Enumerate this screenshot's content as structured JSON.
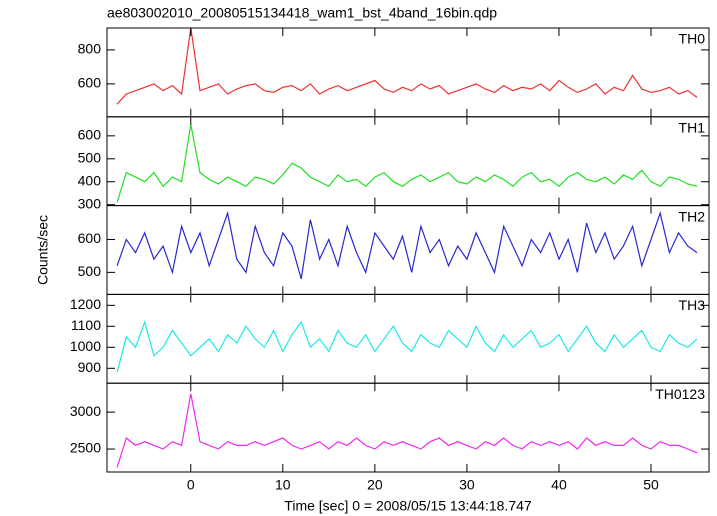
{
  "title": "ae803002010_20080515134418_wam1_bst_4band_16bin.qdp",
  "ylabel": "Counts/sec",
  "xlabel": "Time [sec] 0 = 2008/05/15 13:44:18.747",
  "chart_data": [
    {
      "type": "line",
      "label": "TH0",
      "color": "#f03030",
      "x": [
        -8,
        -7,
        -6,
        -5,
        -4,
        -3,
        -2,
        -1,
        0,
        1,
        2,
        3,
        4,
        5,
        6,
        7,
        8,
        9,
        10,
        11,
        12,
        13,
        14,
        15,
        16,
        17,
        18,
        19,
        20,
        21,
        22,
        23,
        24,
        25,
        26,
        27,
        28,
        29,
        30,
        31,
        32,
        33,
        34,
        35,
        36,
        37,
        38,
        39,
        40,
        41,
        42,
        43,
        44,
        45,
        46,
        47,
        48,
        49,
        50,
        51,
        52,
        53,
        54,
        55
      ],
      "values": [
        480,
        540,
        560,
        580,
        600,
        560,
        590,
        540,
        930,
        560,
        580,
        600,
        540,
        570,
        590,
        600,
        560,
        550,
        580,
        590,
        560,
        600,
        540,
        570,
        590,
        560,
        580,
        600,
        620,
        570,
        550,
        580,
        560,
        600,
        570,
        590,
        540,
        560,
        580,
        600,
        570,
        550,
        590,
        560,
        580,
        570,
        600,
        560,
        620,
        580,
        550,
        570,
        600,
        540,
        580,
        560,
        650,
        570,
        550,
        560,
        580,
        540,
        560,
        520
      ],
      "xlim": [
        -9.1,
        56.3
      ],
      "ylim": [
        406,
        929
      ],
      "yticks": [
        600,
        800
      ]
    },
    {
      "type": "line",
      "label": "TH1",
      "color": "#20e020",
      "x": [
        -8,
        -7,
        -6,
        -5,
        -4,
        -3,
        -2,
        -1,
        0,
        1,
        2,
        3,
        4,
        5,
        6,
        7,
        8,
        9,
        10,
        11,
        12,
        13,
        14,
        15,
        16,
        17,
        18,
        19,
        20,
        21,
        22,
        23,
        24,
        25,
        26,
        27,
        28,
        29,
        30,
        31,
        32,
        33,
        34,
        35,
        36,
        37,
        38,
        39,
        40,
        41,
        42,
        43,
        44,
        45,
        46,
        47,
        48,
        49,
        50,
        51,
        52,
        53,
        54,
        55
      ],
      "values": [
        310,
        440,
        420,
        400,
        440,
        380,
        420,
        400,
        650,
        440,
        410,
        390,
        420,
        400,
        380,
        420,
        410,
        390,
        430,
        480,
        460,
        420,
        400,
        380,
        430,
        400,
        410,
        380,
        420,
        440,
        400,
        380,
        410,
        430,
        400,
        420,
        440,
        400,
        390,
        420,
        400,
        430,
        410,
        380,
        420,
        440,
        400,
        410,
        380,
        420,
        440,
        410,
        400,
        420,
        390,
        430,
        410,
        450,
        400,
        380,
        420,
        410,
        390,
        380
      ],
      "xlim": [
        -9.1,
        56.3
      ],
      "ylim": [
        296,
        683
      ],
      "yticks": [
        300,
        400,
        500,
        600
      ]
    },
    {
      "type": "line",
      "label": "TH2",
      "color": "#2828d0",
      "x": [
        -8,
        -7,
        -6,
        -5,
        -4,
        -3,
        -2,
        -1,
        0,
        1,
        2,
        3,
        4,
        5,
        6,
        7,
        8,
        9,
        10,
        11,
        12,
        13,
        14,
        15,
        16,
        17,
        18,
        19,
        20,
        21,
        22,
        23,
        24,
        25,
        26,
        27,
        28,
        29,
        30,
        31,
        32,
        33,
        34,
        35,
        36,
        37,
        38,
        39,
        40,
        41,
        42,
        43,
        44,
        45,
        46,
        47,
        48,
        49,
        50,
        51,
        52,
        53,
        54,
        55
      ],
      "values": [
        520,
        600,
        560,
        620,
        540,
        580,
        500,
        640,
        560,
        620,
        520,
        600,
        680,
        540,
        500,
        640,
        560,
        520,
        620,
        580,
        480,
        660,
        540,
        600,
        520,
        640,
        560,
        500,
        620,
        580,
        540,
        610,
        500,
        640,
        560,
        600,
        520,
        580,
        540,
        620,
        560,
        500,
        640,
        580,
        520,
        600,
        560,
        620,
        540,
        600,
        500,
        650,
        560,
        620,
        540,
        580,
        640,
        520,
        600,
        680,
        560,
        620,
        580,
        560
      ],
      "xlim": [
        -9.1,
        56.3
      ],
      "ylim": [
        433,
        703
      ],
      "yticks": [
        500,
        600
      ]
    },
    {
      "type": "line",
      "label": "TH3",
      "color": "#20e8e8",
      "x": [
        -8,
        -7,
        -6,
        -5,
        -4,
        -3,
        -2,
        -1,
        0,
        1,
        2,
        3,
        4,
        5,
        6,
        7,
        8,
        9,
        10,
        11,
        12,
        13,
        14,
        15,
        16,
        17,
        18,
        19,
        20,
        21,
        22,
        23,
        24,
        25,
        26,
        27,
        28,
        29,
        30,
        31,
        32,
        33,
        34,
        35,
        36,
        37,
        38,
        39,
        40,
        41,
        42,
        43,
        44,
        45,
        46,
        47,
        48,
        49,
        50,
        51,
        52,
        53,
        54,
        55
      ],
      "values": [
        880,
        1050,
        1000,
        1120,
        960,
        1000,
        1080,
        1020,
        960,
        1000,
        1040,
        980,
        1060,
        1020,
        1100,
        1040,
        1000,
        1080,
        980,
        1060,
        1120,
        1000,
        1040,
        980,
        1080,
        1020,
        1000,
        1060,
        980,
        1040,
        1100,
        1020,
        980,
        1060,
        1020,
        1000,
        1080,
        1040,
        1000,
        1100,
        1020,
        980,
        1060,
        1000,
        1040,
        1080,
        1000,
        1020,
        1060,
        980,
        1040,
        1100,
        1020,
        980,
        1060,
        1000,
        1040,
        1080,
        1000,
        980,
        1060,
        1020,
        1000,
        1040
      ],
      "xlim": [
        -9.1,
        56.3
      ],
      "ylim": [
        829,
        1252
      ],
      "yticks": [
        900,
        1000,
        1100,
        1200
      ]
    },
    {
      "type": "line",
      "label": "TH0123",
      "color": "#f028f0",
      "x": [
        -8,
        -7,
        -6,
        -5,
        -4,
        -3,
        -2,
        -1,
        0,
        1,
        2,
        3,
        4,
        5,
        6,
        7,
        8,
        9,
        10,
        11,
        12,
        13,
        14,
        15,
        16,
        17,
        18,
        19,
        20,
        21,
        22,
        23,
        24,
        25,
        26,
        27,
        28,
        29,
        30,
        31,
        32,
        33,
        34,
        35,
        36,
        37,
        38,
        39,
        40,
        41,
        42,
        43,
        44,
        45,
        46,
        47,
        48,
        49,
        50,
        51,
        52,
        53,
        54,
        55
      ],
      "values": [
        2250,
        2650,
        2550,
        2600,
        2550,
        2500,
        2600,
        2550,
        3250,
        2600,
        2550,
        2500,
        2600,
        2550,
        2550,
        2600,
        2550,
        2600,
        2650,
        2550,
        2500,
        2550,
        2600,
        2500,
        2600,
        2550,
        2650,
        2550,
        2500,
        2600,
        2550,
        2600,
        2550,
        2500,
        2600,
        2650,
        2550,
        2600,
        2550,
        2500,
        2600,
        2550,
        2650,
        2550,
        2500,
        2600,
        2550,
        2600,
        2550,
        2600,
        2500,
        2650,
        2550,
        2600,
        2550,
        2550,
        2650,
        2550,
        2500,
        2600,
        2550,
        2550,
        2500,
        2450
      ],
      "xlim": [
        -9.1,
        56.3
      ],
      "xticks": [
        0,
        10,
        20,
        30,
        40,
        50
      ],
      "ylim": [
        2189,
        3392
      ],
      "yticks": [
        2500,
        3000
      ]
    }
  ]
}
